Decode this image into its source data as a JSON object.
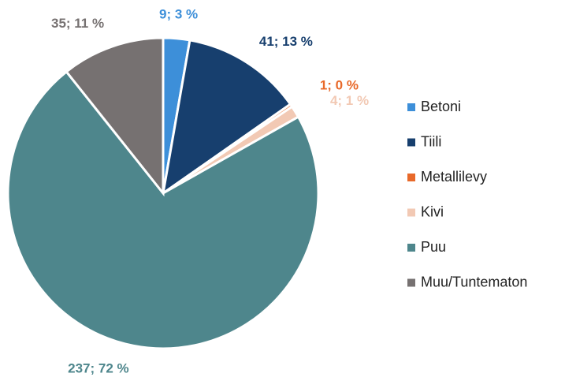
{
  "chart_data": {
    "type": "pie",
    "categories": [
      "Betoni",
      "Tiili",
      "Metallilevy",
      "Kivi",
      "Puu",
      "Muu/Tuntematon"
    ],
    "values": [
      9,
      41,
      1,
      4,
      237,
      35
    ],
    "value_labels": [
      "9; 3 %",
      "41; 13 %",
      "1; 0 %",
      "4; 1 %",
      "237; 72 %",
      "35; 11 %"
    ],
    "colors": [
      "#3d8fd9",
      "#173f6e",
      "#e8692a",
      "#f2c9b4",
      "#4e868c",
      "#767171"
    ],
    "legend": "right"
  }
}
